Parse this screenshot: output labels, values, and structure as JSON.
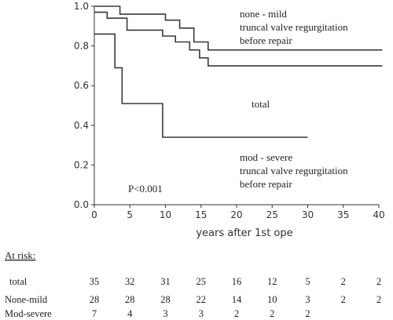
{
  "chart_data": {
    "type": "line",
    "xlabel": "years after 1st ope",
    "xlim": [
      0,
      40
    ],
    "ylim": [
      0,
      1.0
    ],
    "x_ticks": [
      "0",
      "5",
      "10",
      "15",
      "20",
      "25",
      "30",
      "35",
      "40"
    ],
    "y_ticks": [
      "0.0",
      "0.2",
      "0.4",
      "0.6",
      "0.8",
      "1.0"
    ],
    "series": [
      {
        "name": "none - mild truncal valve regurgitation before repair",
        "label_lines": [
          "none - mild",
          "truncal valve regurgitation",
          "before repair"
        ],
        "x": [
          0,
          3.6,
          3.6,
          10,
          10,
          12,
          12,
          14,
          14,
          16,
          16,
          40.5
        ],
        "y": [
          1.0,
          1.0,
          0.96,
          0.96,
          0.93,
          0.93,
          0.89,
          0.89,
          0.82,
          0.82,
          0.78,
          0.78
        ]
      },
      {
        "name": "total",
        "label_lines": [
          "total"
        ],
        "x": [
          0,
          1.8,
          1.8,
          4.6,
          4.6,
          9.6,
          9.6,
          11.4,
          11.4,
          13.4,
          13.4,
          14.8,
          14.8,
          16,
          16,
          40.5
        ],
        "y": [
          0.97,
          0.97,
          0.94,
          0.94,
          0.88,
          0.88,
          0.85,
          0.85,
          0.82,
          0.82,
          0.78,
          0.78,
          0.74,
          0.74,
          0.7,
          0.7
        ]
      },
      {
        "name": "mod - severe truncal valve regurgitation before repair",
        "label_lines": [
          "mod - severe",
          "truncal valve regurgitation",
          "before repair"
        ],
        "x": [
          0,
          1.8,
          1.8,
          2.9,
          2.9,
          3.9,
          3.9,
          9.6,
          9.6,
          30
        ],
        "y": [
          0.86,
          0.86,
          0.86,
          0.86,
          0.69,
          0.69,
          0.51,
          0.51,
          0.34,
          0.34
        ]
      }
    ],
    "annotation": "P<0.001",
    "at_risk": {
      "title": "At risk:",
      "rows": [
        {
          "label": "total",
          "values": [
            "35",
            "32",
            "31",
            "25",
            "16",
            "12",
            "5",
            "2",
            "2"
          ]
        },
        {
          "label": "None-mild",
          "values": [
            "28",
            "28",
            "28",
            "22",
            "14",
            "10",
            "3",
            "2",
            "2"
          ]
        },
        {
          "label": "Mod-severe",
          "values": [
            "7",
            "4",
            "3",
            "3",
            "2",
            "2",
            "2"
          ]
        }
      ]
    }
  }
}
